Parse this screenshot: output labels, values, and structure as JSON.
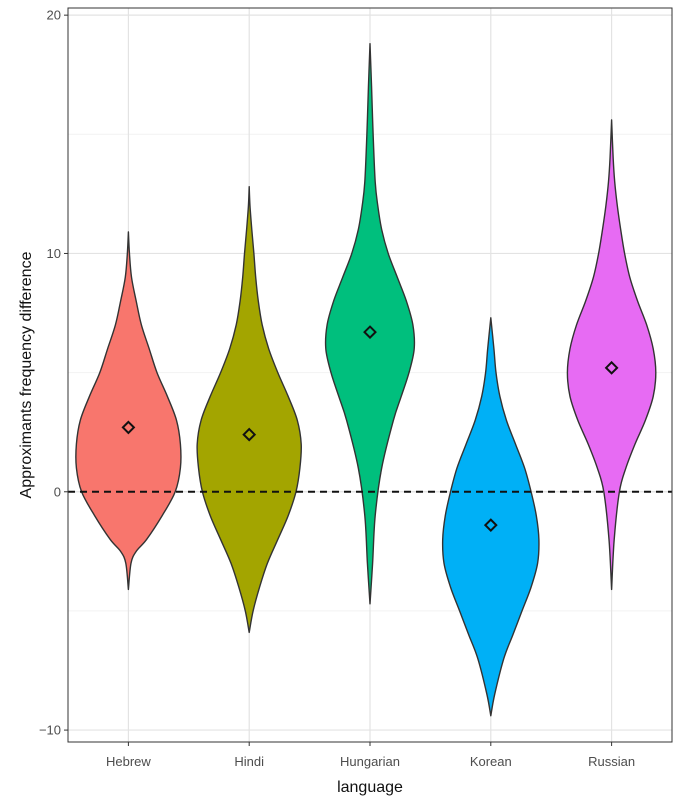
{
  "chart_data": {
    "type": "violin",
    "title": "",
    "xlabel": "language",
    "ylabel": "Approximants frequency difference",
    "ylim": [
      -10.5,
      20.3
    ],
    "yticks": [
      -10,
      0,
      10,
      20
    ],
    "ytick_labels": [
      "−10",
      "0",
      "10",
      "20"
    ],
    "grid": true,
    "reference_line": {
      "y": 0,
      "style": "dashed"
    },
    "marker": "diamond (mean)",
    "categories": [
      "Hebrew",
      "Hindi",
      "Hungarian",
      "Korean",
      "Russian"
    ],
    "series": [
      {
        "category": "Hebrew",
        "color": "#F8766D",
        "mean": 2.7,
        "min": -4.1,
        "max": 10.9,
        "density": [
          [
            -4.1,
            0.0
          ],
          [
            -3.0,
            0.1
          ],
          [
            -2.5,
            0.3
          ],
          [
            -2.0,
            0.7
          ],
          [
            -1.0,
            1.3
          ],
          [
            0.0,
            1.8
          ],
          [
            1.0,
            2.0
          ],
          [
            2.0,
            2.0
          ],
          [
            3.0,
            1.85
          ],
          [
            4.0,
            1.5
          ],
          [
            5.0,
            1.1
          ],
          [
            6.0,
            0.8
          ],
          [
            7.0,
            0.5
          ],
          [
            8.0,
            0.3
          ],
          [
            9.0,
            0.12
          ],
          [
            10.0,
            0.04
          ],
          [
            10.9,
            0.0
          ]
        ]
      },
      {
        "category": "Hindi",
        "color": "#A3A500",
        "mean": 2.4,
        "min": -5.9,
        "max": 12.8,
        "density": [
          [
            -5.9,
            0.0
          ],
          [
            -5.0,
            0.15
          ],
          [
            -4.0,
            0.4
          ],
          [
            -3.0,
            0.7
          ],
          [
            -2.0,
            1.1
          ],
          [
            -1.0,
            1.5
          ],
          [
            0.0,
            1.8
          ],
          [
            1.0,
            1.95
          ],
          [
            2.0,
            2.0
          ],
          [
            3.0,
            1.85
          ],
          [
            4.0,
            1.5
          ],
          [
            5.0,
            1.1
          ],
          [
            6.0,
            0.75
          ],
          [
            7.0,
            0.5
          ],
          [
            8.0,
            0.35
          ],
          [
            9.0,
            0.25
          ],
          [
            10.0,
            0.18
          ],
          [
            11.0,
            0.1
          ],
          [
            12.0,
            0.03
          ],
          [
            12.8,
            0.0
          ]
        ]
      },
      {
        "category": "Hungarian",
        "color": "#00BF7D",
        "mean": 6.7,
        "min": -4.7,
        "max": 18.8,
        "density": [
          [
            -4.7,
            0.0
          ],
          [
            -3.0,
            0.1
          ],
          [
            -1.0,
            0.2
          ],
          [
            1.0,
            0.45
          ],
          [
            3.0,
            0.9
          ],
          [
            4.0,
            1.2
          ],
          [
            5.0,
            1.5
          ],
          [
            6.0,
            1.7
          ],
          [
            7.0,
            1.65
          ],
          [
            8.0,
            1.4
          ],
          [
            9.0,
            1.05
          ],
          [
            10.0,
            0.7
          ],
          [
            11.0,
            0.45
          ],
          [
            12.0,
            0.3
          ],
          [
            13.0,
            0.2
          ],
          [
            15.0,
            0.12
          ],
          [
            17.0,
            0.06
          ],
          [
            18.8,
            0.0
          ]
        ]
      },
      {
        "category": "Korean",
        "color": "#00B0F6",
        "mean": -1.4,
        "min": -9.4,
        "max": 7.3,
        "density": [
          [
            -9.4,
            0.0
          ],
          [
            -8.5,
            0.15
          ],
          [
            -7.0,
            0.5
          ],
          [
            -6.0,
            0.85
          ],
          [
            -5.0,
            1.2
          ],
          [
            -4.0,
            1.55
          ],
          [
            -3.0,
            1.8
          ],
          [
            -2.0,
            1.85
          ],
          [
            -1.0,
            1.75
          ],
          [
            0.0,
            1.55
          ],
          [
            1.0,
            1.3
          ],
          [
            2.0,
            0.95
          ],
          [
            3.0,
            0.6
          ],
          [
            4.0,
            0.35
          ],
          [
            5.0,
            0.2
          ],
          [
            6.0,
            0.12
          ],
          [
            7.3,
            0.0
          ]
        ]
      },
      {
        "category": "Russian",
        "color": "#E76BF3",
        "mean": 5.2,
        "min": -4.1,
        "max": 15.6,
        "density": [
          [
            -4.1,
            0.0
          ],
          [
            -2.0,
            0.1
          ],
          [
            0.0,
            0.3
          ],
          [
            1.0,
            0.55
          ],
          [
            2.0,
            0.9
          ],
          [
            3.0,
            1.3
          ],
          [
            4.0,
            1.6
          ],
          [
            5.0,
            1.7
          ],
          [
            6.0,
            1.6
          ],
          [
            7.0,
            1.35
          ],
          [
            8.0,
            1.0
          ],
          [
            9.0,
            0.7
          ],
          [
            10.0,
            0.5
          ],
          [
            11.0,
            0.35
          ],
          [
            12.0,
            0.22
          ],
          [
            13.0,
            0.12
          ],
          [
            14.0,
            0.06
          ],
          [
            15.6,
            0.0
          ]
        ]
      }
    ]
  }
}
